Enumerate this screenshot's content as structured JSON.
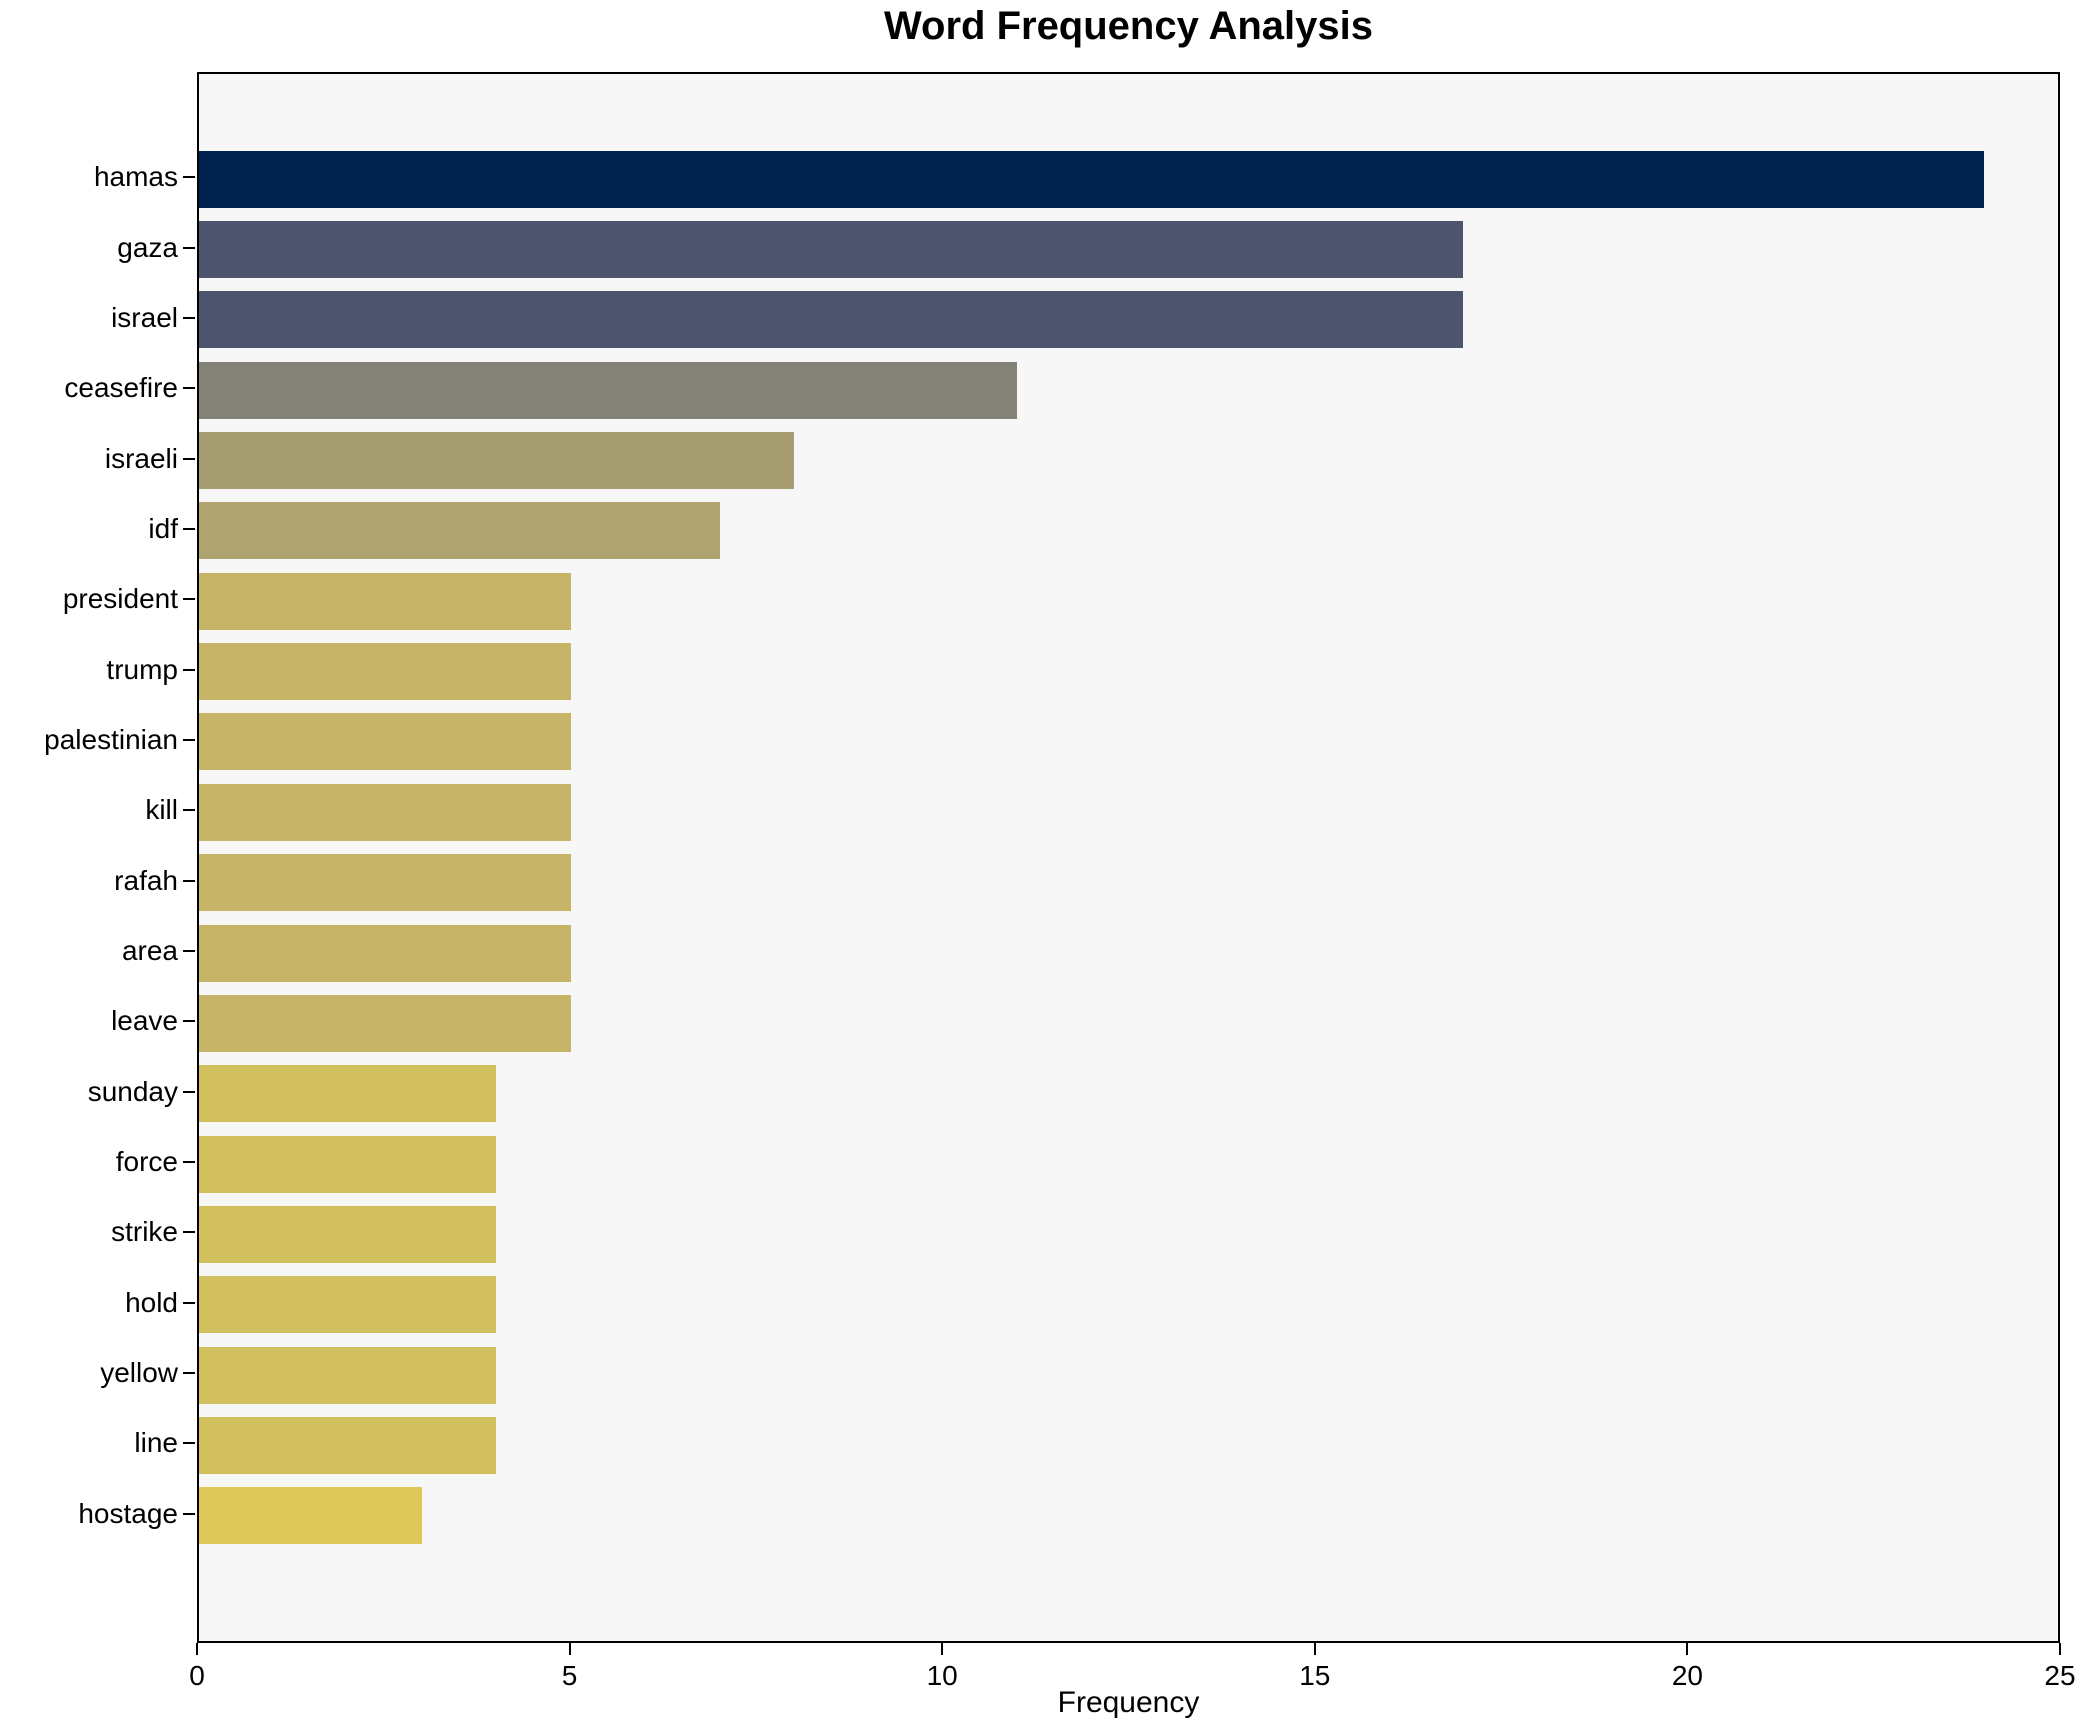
{
  "title": "Word Frequency Analysis",
  "chart_data": {
    "type": "bar",
    "orientation": "horizontal",
    "title": "Word Frequency Analysis",
    "xlabel": "Frequency",
    "ylabel": "",
    "categories": [
      "hamas",
      "gaza",
      "israel",
      "ceasefire",
      "israeli",
      "idf",
      "president",
      "trump",
      "palestinian",
      "kill",
      "rafah",
      "area",
      "leave",
      "sunday",
      "force",
      "strike",
      "hold",
      "yellow",
      "line",
      "hostage"
    ],
    "values": [
      24,
      17,
      17,
      11,
      8,
      7,
      5,
      5,
      5,
      5,
      5,
      5,
      5,
      4,
      4,
      4,
      4,
      4,
      4,
      3
    ],
    "bar_colors": [
      "#00224e",
      "#4c546e",
      "#4c546e",
      "#848276",
      "#a79d72",
      "#afa470",
      "#c6b566",
      "#c6b566",
      "#c6b566",
      "#c6b566",
      "#c6b566",
      "#c6b566",
      "#c6b566",
      "#d2c05e",
      "#d2c05e",
      "#d2c05e",
      "#d2c05e",
      "#d2c05e",
      "#d2c05e",
      "#ddc859"
    ],
    "xlim": [
      0,
      25
    ],
    "x_ticks": [
      0,
      5,
      10,
      15,
      20,
      25
    ],
    "grid": false,
    "legend_position": "none",
    "plot_background": "#f7f7f8",
    "spine_color": "#000000"
  }
}
